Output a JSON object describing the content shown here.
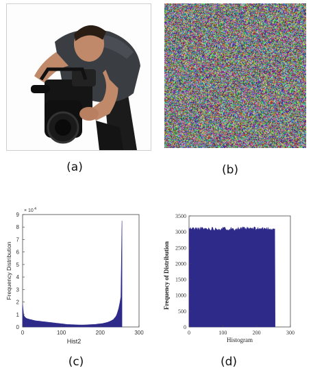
{
  "captions": [
    "(a)",
    "(b)",
    "(c)",
    "(d)"
  ],
  "photo": {
    "subject": "videographer-with-camera"
  },
  "noise": {
    "seed": 7
  },
  "chart_data": [
    {
      "type": "area",
      "xlabel": "Hist2",
      "ylabel": "Frequency Distribution",
      "xlim": [
        0,
        300
      ],
      "ylim": [
        0,
        90000
      ],
      "x_ticks": [
        "0",
        "100",
        "200",
        "300"
      ],
      "y_ticks": [
        "0",
        "1",
        "2",
        "3",
        "4",
        "5",
        "6",
        "7",
        "8",
        "9"
      ],
      "y_exponent": "× 10",
      "y_exponent_power": "4",
      "color": "#2e2a8a",
      "grid": false,
      "values": [
        18000,
        9500,
        8000,
        7200,
        6800,
        6500,
        6200,
        6000,
        5800,
        5600,
        5400,
        5200,
        5000,
        4900,
        4800,
        4700,
        4600,
        4500,
        4400,
        4300,
        4200,
        4100,
        4000,
        3900,
        3800,
        3700,
        3600,
        3500,
        3400,
        3300,
        3200,
        3100,
        3000,
        2900,
        2800,
        2700,
        2600,
        2500,
        2400,
        2300,
        2200,
        2100,
        2000,
        2000,
        1950,
        1900,
        1850,
        1800,
        1800,
        1750,
        1700,
        1700,
        1650,
        1650,
        1600,
        1600,
        1600,
        1650,
        1650,
        1700,
        1700,
        1750,
        1800,
        1850,
        1900,
        1950,
        2000,
        2050,
        2100,
        2200,
        2300,
        2400,
        2500,
        2600,
        2700,
        2800,
        3000,
        3200,
        3400,
        3600,
        3900,
        4200,
        4600,
        5000,
        5500,
        6000,
        7000,
        8000,
        9500,
        12000,
        15000,
        19000,
        24000,
        85000
      ]
    },
    {
      "type": "bar",
      "xlabel": "Histogram",
      "ylabel": "Frequency of Distribution",
      "xlim": [
        0,
        300
      ],
      "ylim": [
        0,
        3500
      ],
      "x_ticks": [
        "0",
        "100",
        "200",
        "300"
      ],
      "y_ticks": [
        "0",
        "500",
        "1000",
        "1500",
        "2000",
        "2500",
        "3000",
        "3500"
      ],
      "color": "#2e2a8a",
      "grid": false,
      "x_range": [
        0,
        255
      ],
      "mean_value": 3100,
      "spread": 120
    }
  ]
}
